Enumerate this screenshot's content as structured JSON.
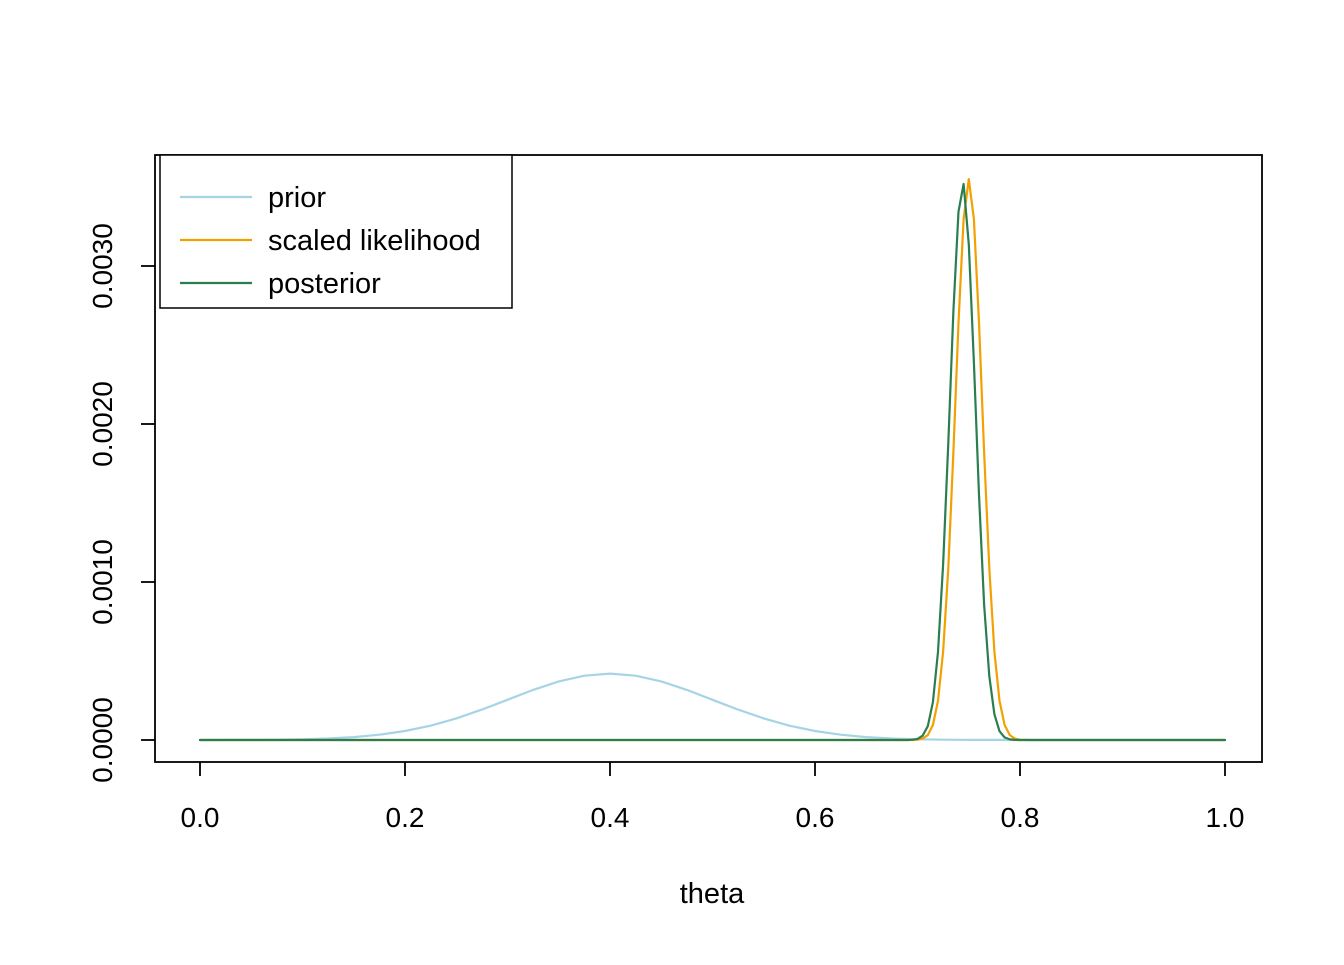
{
  "figure": {
    "background": "#ffffff",
    "axis_color": "#000000"
  },
  "chart_data": {
    "type": "line",
    "title": "",
    "xlabel": "theta",
    "ylabel": "",
    "xlim": [
      0,
      1
    ],
    "ylim": [
      0,
      0.00365
    ],
    "grid": false,
    "x_ticks": [
      0.0,
      0.2,
      0.4,
      0.6,
      0.8,
      1.0
    ],
    "x_tick_labels": [
      "0.0",
      "0.2",
      "0.4",
      "0.6",
      "0.8",
      "1.0"
    ],
    "y_ticks": [
      0.0,
      0.001,
      0.002,
      0.003
    ],
    "y_tick_labels": [
      "0.0000",
      "0.0010",
      "0.0020",
      "0.0030"
    ],
    "legend": {
      "position": "top-left",
      "entries": [
        "prior",
        "scaled likelihood",
        "posterior"
      ]
    },
    "series": [
      {
        "name": "prior",
        "color": "#a6d4e5",
        "peak_x": 0.4,
        "peak_y": 0.00042,
        "x": [
          0,
          0.025,
          0.05,
          0.075,
          0.1,
          0.125,
          0.15,
          0.175,
          0.2,
          0.225,
          0.25,
          0.275,
          0.3,
          0.325,
          0.35,
          0.375,
          0.4,
          0.425,
          0.45,
          0.475,
          0.5,
          0.525,
          0.55,
          0.575,
          0.6,
          0.625,
          0.65,
          0.675,
          0.7,
          0.725,
          0.75,
          0.775,
          0.8,
          0.825,
          0.85,
          0.875,
          0.9,
          0.925,
          0.95,
          0.975,
          1
        ],
        "y": [
          0,
          4e-07,
          9e-07,
          2.1e-06,
          4.7e-06,
          9.6e-06,
          1.85e-05,
          3.34e-05,
          5.68e-05,
          9.08e-05,
          0.0001364,
          0.0001923,
          0.0002547,
          0.000317,
          0.0003707,
          0.0004071,
          0.00042,
          0.0004071,
          0.0003707,
          0.000317,
          0.0002547,
          0.0001923,
          0.0001364,
          9.08e-05,
          5.68e-05,
          3.34e-05,
          1.85e-05,
          9.6e-06,
          4.7e-06,
          2.1e-06,
          9e-07,
          4e-07,
          1e-07,
          0,
          0,
          0,
          0,
          0,
          0,
          0,
          0
        ]
      },
      {
        "name": "scaled likelihood",
        "color": "#f2a100",
        "peak_x": 0.75,
        "peak_y": 0.00355,
        "x": [
          0,
          0.1,
          0.2,
          0.3,
          0.4,
          0.5,
          0.6,
          0.65,
          0.68,
          0.685,
          0.69,
          0.695,
          0.7,
          0.705,
          0.71,
          0.715,
          0.72,
          0.725,
          0.73,
          0.735,
          0.74,
          0.745,
          0.75,
          0.755,
          0.76,
          0.765,
          0.77,
          0.775,
          0.78,
          0.785,
          0.79,
          0.795,
          0.8,
          0.805,
          0.81,
          0.85,
          0.9,
          0.95,
          1
        ],
        "y": [
          0,
          0,
          0,
          0,
          0,
          0,
          0,
          0,
          0,
          0,
          1e-07,
          5e-07,
          2.2e-06,
          8.9e-06,
          3.12e-05,
          9.48e-05,
          0.000248,
          0.000559,
          0.001087,
          0.001824,
          0.002641,
          0.003297,
          0.00355,
          0.003297,
          0.002641,
          0.001824,
          0.001087,
          0.000559,
          0.000248,
          9.48e-05,
          3.12e-05,
          8.9e-06,
          2.2e-06,
          5e-07,
          1e-07,
          0,
          0,
          0,
          0
        ]
      },
      {
        "name": "posterior",
        "color": "#2a7e4f",
        "peak_x": 0.745,
        "peak_y": 0.00352,
        "x": [
          0,
          0.1,
          0.2,
          0.3,
          0.4,
          0.5,
          0.6,
          0.65,
          0.68,
          0.685,
          0.69,
          0.695,
          0.7,
          0.705,
          0.71,
          0.715,
          0.72,
          0.725,
          0.73,
          0.735,
          0.74,
          0.745,
          0.75,
          0.755,
          0.76,
          0.765,
          0.77,
          0.775,
          0.78,
          0.785,
          0.79,
          0.795,
          0.8,
          0.85,
          0.9,
          0.95,
          1
        ],
        "y": [
          0,
          0,
          0,
          0,
          0,
          0,
          0,
          0,
          0,
          0,
          3e-07,
          1.6e-06,
          7.2e-06,
          2.71e-05,
          8.71e-05,
          0.000239,
          0.000558,
          0.001109,
          0.00188,
          0.002716,
          0.003344,
          0.003519,
          0.003137,
          0.00239,
          0.001552,
          0.000858,
          0.000404,
          0.000163,
          5.57e-05,
          1.62e-05,
          4e-06,
          9e-07,
          2e-07,
          0,
          0,
          0,
          0
        ]
      }
    ]
  }
}
